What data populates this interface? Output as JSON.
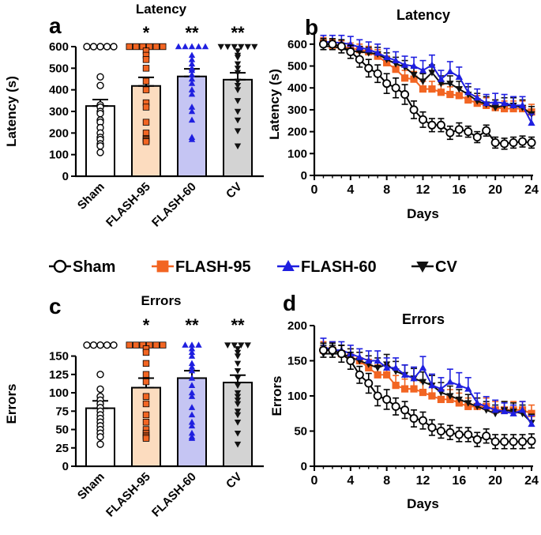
{
  "colors": {
    "sham": "#000000",
    "flash95": "#f26522",
    "flash60": "#1f1fe0",
    "cv": "#111111",
    "bar_flash95": "#fcdcbf",
    "bar_flash60": "#c5c5f3",
    "bar_cv": "#d3d3d3"
  },
  "legend": [
    {
      "key": "sham",
      "label": "Sham",
      "marker": "circle-open"
    },
    {
      "key": "flash95",
      "label": "FLASH-95",
      "marker": "square"
    },
    {
      "key": "flash60",
      "label": "FLASH-60",
      "marker": "triangle-up"
    },
    {
      "key": "cv",
      "label": "CV",
      "marker": "triangle-down"
    }
  ],
  "chart_data": [
    {
      "panel": "a",
      "type": "bar",
      "title": "Latency",
      "ylabel": "Latency (s)",
      "ylim": [
        0,
        600
      ],
      "yticks": [
        0,
        100,
        200,
        300,
        400,
        500,
        600
      ],
      "categories": [
        "Sham",
        "FLASH-95",
        "FLASH-60",
        "CV"
      ],
      "means": [
        325,
        418,
        462,
        447
      ],
      "sem": [
        30,
        40,
        35,
        32
      ],
      "significance": [
        "",
        "*",
        "**",
        "**"
      ],
      "points": [
        [
          600,
          600,
          600,
          600,
          600,
          460,
          420,
          330,
          320,
          300,
          290,
          260,
          250,
          225,
          200,
          180,
          170,
          150,
          140,
          110
        ],
        [
          600,
          600,
          600,
          600,
          600,
          600,
          580,
          560,
          540,
          500,
          440,
          400,
          340,
          320,
          250,
          200,
          175,
          170,
          165,
          160
        ],
        [
          600,
          600,
          600,
          600,
          600,
          560,
          540,
          520,
          500,
          490,
          470,
          450,
          430,
          400,
          380,
          320,
          300,
          260,
          180,
          170
        ],
        [
          600,
          600,
          600,
          600,
          600,
          600,
          580,
          560,
          550,
          520,
          500,
          480,
          440,
          420,
          400,
          350,
          300,
          260,
          210,
          140
        ]
      ]
    },
    {
      "panel": "b",
      "type": "line",
      "title": "Latency",
      "xlabel": "Days",
      "ylabel": "Latency (s)",
      "xlim": [
        0,
        24
      ],
      "ylim": [
        0,
        650
      ],
      "xticks": [
        0,
        4,
        8,
        12,
        16,
        20,
        24
      ],
      "yticks": [
        0,
        100,
        200,
        300,
        400,
        500,
        600
      ],
      "x": [
        1,
        2,
        3,
        4,
        5,
        6,
        7,
        8,
        9,
        10,
        11,
        12,
        13,
        14,
        15,
        16,
        17,
        18,
        19,
        20,
        21,
        22,
        23,
        24
      ],
      "series": [
        {
          "name": "Sham",
          "values": [
            600,
            600,
            590,
            565,
            530,
            490,
            465,
            420,
            400,
            370,
            300,
            255,
            230,
            230,
            195,
            210,
            200,
            175,
            205,
            150,
            145,
            150,
            155,
            150
          ],
          "err": [
            25,
            25,
            30,
            30,
            35,
            40,
            40,
            45,
            45,
            45,
            40,
            35,
            30,
            30,
            30,
            30,
            25,
            25,
            25,
            25,
            25,
            25,
            25,
            25
          ]
        },
        {
          "name": "FLASH-95",
          "values": [
            605,
            595,
            590,
            580,
            575,
            565,
            545,
            515,
            485,
            445,
            440,
            395,
            395,
            380,
            370,
            365,
            345,
            330,
            320,
            310,
            305,
            305,
            305,
            290
          ],
          "err": [
            25,
            25,
            25,
            25,
            25,
            25,
            30,
            30,
            30,
            35,
            35,
            35,
            35,
            35,
            35,
            35,
            35,
            35,
            35,
            35,
            35,
            35,
            35,
            35
          ]
        },
        {
          "name": "FLASH-60",
          "values": [
            610,
            610,
            605,
            600,
            585,
            575,
            560,
            540,
            525,
            505,
            500,
            480,
            505,
            440,
            475,
            450,
            380,
            355,
            330,
            335,
            330,
            320,
            320,
            240
          ],
          "err": [
            30,
            30,
            35,
            35,
            35,
            35,
            40,
            40,
            40,
            40,
            40,
            45,
            45,
            40,
            45,
            45,
            40,
            40,
            40,
            40,
            40,
            40,
            40,
            40
          ]
        },
        {
          "name": "CV",
          "values": [
            590,
            590,
            580,
            570,
            565,
            560,
            555,
            530,
            510,
            495,
            460,
            430,
            470,
            420,
            420,
            395,
            370,
            340,
            325,
            310,
            320,
            320,
            310,
            280
          ],
          "err": [
            25,
            25,
            25,
            25,
            25,
            25,
            30,
            30,
            30,
            30,
            35,
            35,
            35,
            35,
            35,
            35,
            35,
            35,
            35,
            35,
            35,
            35,
            35,
            35
          ]
        }
      ]
    },
    {
      "panel": "c",
      "type": "bar",
      "title": "Errors",
      "ylabel": "Errors",
      "ylim": [
        0,
        170
      ],
      "yticks": [
        0,
        25,
        50,
        75,
        100,
        125,
        150
      ],
      "categories": [
        "Sham",
        "FLASH-95",
        "FLASH-60",
        "CV"
      ],
      "means": [
        79,
        107,
        120,
        114
      ],
      "sem": [
        10,
        13,
        10,
        10
      ],
      "significance": [
        "",
        "*",
        "**",
        "**"
      ],
      "points": [
        [
          165,
          165,
          165,
          165,
          165,
          125,
          105,
          95,
          90,
          85,
          80,
          75,
          70,
          65,
          60,
          55,
          50,
          45,
          40,
          30
        ],
        [
          165,
          165,
          165,
          165,
          165,
          165,
          160,
          155,
          140,
          125,
          115,
          95,
          85,
          70,
          60,
          50,
          45,
          42,
          40,
          38
        ],
        [
          165,
          165,
          165,
          160,
          155,
          150,
          140,
          135,
          130,
          120,
          110,
          100,
          95,
          80,
          70,
          60,
          55,
          45,
          40,
          38
        ],
        [
          165,
          165,
          165,
          165,
          160,
          155,
          150,
          140,
          130,
          120,
          110,
          100,
          95,
          90,
          85,
          75,
          70,
          60,
          45,
          30
        ]
      ]
    },
    {
      "panel": "d",
      "type": "line",
      "title": "Errors",
      "xlabel": "Days",
      "ylabel": "Errors",
      "xlim": [
        0,
        24
      ],
      "ylim": [
        0,
        200
      ],
      "xticks": [
        0,
        4,
        8,
        12,
        16,
        20,
        24
      ],
      "yticks": [
        0,
        50,
        100,
        150,
        200
      ],
      "x": [
        1,
        2,
        3,
        4,
        5,
        6,
        7,
        8,
        9,
        10,
        11,
        12,
        13,
        14,
        15,
        16,
        17,
        18,
        19,
        20,
        21,
        22,
        23,
        24
      ],
      "series": [
        {
          "name": "Sham",
          "values": [
            165,
            165,
            160,
            150,
            130,
            118,
            100,
            95,
            85,
            80,
            68,
            65,
            55,
            50,
            48,
            45,
            45,
            38,
            43,
            35,
            35,
            35,
            35,
            36
          ],
          "err": [
            10,
            10,
            12,
            12,
            12,
            14,
            14,
            14,
            12,
            12,
            12,
            12,
            11,
            10,
            10,
            10,
            10,
            10,
            10,
            10,
            10,
            10,
            10,
            10
          ]
        },
        {
          "name": "FLASH-95",
          "values": [
            165,
            165,
            160,
            155,
            150,
            140,
            130,
            130,
            115,
            110,
            110,
            105,
            100,
            95,
            95,
            90,
            85,
            85,
            85,
            80,
            80,
            80,
            80,
            75
          ],
          "err": [
            12,
            12,
            12,
            12,
            12,
            12,
            14,
            14,
            14,
            14,
            14,
            14,
            14,
            14,
            14,
            14,
            12,
            12,
            12,
            12,
            12,
            12,
            12,
            12
          ]
        },
        {
          "name": "FLASH-60",
          "values": [
            170,
            165,
            165,
            160,
            155,
            150,
            150,
            140,
            140,
            130,
            125,
            140,
            115,
            110,
            120,
            115,
            110,
            90,
            85,
            80,
            78,
            75,
            80,
            60
          ],
          "err": [
            12,
            12,
            12,
            12,
            12,
            14,
            14,
            14,
            14,
            14,
            16,
            16,
            16,
            16,
            18,
            18,
            16,
            14,
            14,
            14,
            12,
            12,
            12,
            12
          ]
        },
        {
          "name": "CV",
          "values": [
            160,
            160,
            160,
            155,
            150,
            145,
            140,
            145,
            135,
            130,
            125,
            120,
            115,
            105,
            100,
            95,
            90,
            85,
            80,
            75,
            80,
            78,
            75,
            62
          ],
          "err": [
            12,
            12,
            12,
            12,
            12,
            12,
            14,
            14,
            14,
            14,
            14,
            14,
            14,
            14,
            14,
            14,
            12,
            12,
            12,
            12,
            12,
            12,
            12,
            12
          ]
        }
      ]
    }
  ]
}
